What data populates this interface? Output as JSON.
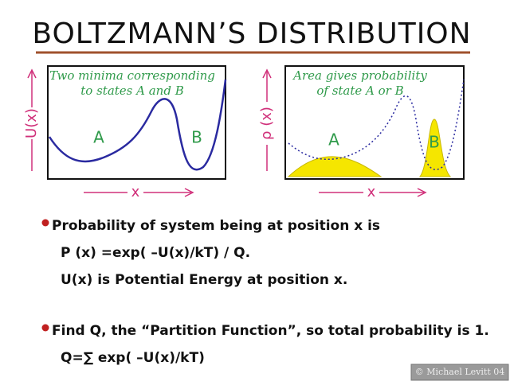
{
  "header": {
    "title": "BOLTZMANN’S  DISTRIBUTION"
  },
  "panels": [
    {
      "annotation": [
        "Two minima corresponding",
        "to states A and B"
      ],
      "state_a": "A",
      "state_b": "B",
      "y_label": "U(x)",
      "x_label": "x"
    },
    {
      "annotation": [
        "Area gives probability",
        "of state A or B"
      ],
      "state_a": "A",
      "state_b": "B",
      "y_label": "ρ (x)",
      "x_label": "x"
    }
  ],
  "bullets": [
    {
      "lines": [
        "Probability of system being at position x is",
        "P (x) =exp( –U(x)/kT) / Q.",
        "U(x) is Potential Energy at position x."
      ]
    },
    {
      "lines": [
        "Find Q, the “Partition Function”, so total probability is 1.",
        "Q=∑ exp( –U(x)/kT)"
      ]
    }
  ],
  "footer": {
    "credit": "© Michael Levitt 04"
  }
}
